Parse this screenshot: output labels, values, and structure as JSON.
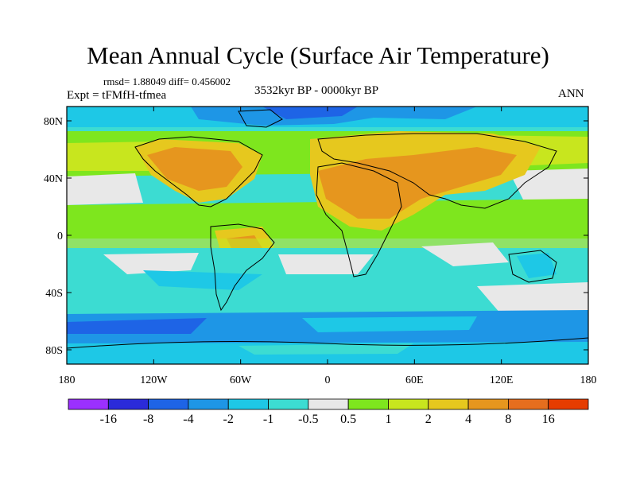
{
  "title": "Mean Annual Cycle (Surface Air Temperature)",
  "stats": "rmsd= 1.88049 diff= 0.456002",
  "experiment": "Expt = tFMfH-tfmea",
  "period": "3532kyr BP - 0000kyr BP",
  "season": "ANN",
  "lat_labels": [
    "80N",
    "40N",
    "0",
    "40S",
    "80S"
  ],
  "lon_labels": [
    "180",
    "120W",
    "60W",
    "0",
    "60E",
    "120E",
    "180"
  ],
  "colorbar": {
    "colors": [
      "#9b30ff",
      "#2b2bd9",
      "#1e64e6",
      "#1e96e6",
      "#1ec8e6",
      "#3cdcd2",
      "#e8e8e8",
      "#7ee61e",
      "#c8e61e",
      "#e6c81e",
      "#e6961e",
      "#e66e1e",
      "#e63c00"
    ],
    "labels": [
      "-16",
      "-8",
      "-4",
      "-2",
      "-1",
      "-0.5",
      "0.5",
      "1",
      "2",
      "4",
      "8",
      "16"
    ]
  }
}
